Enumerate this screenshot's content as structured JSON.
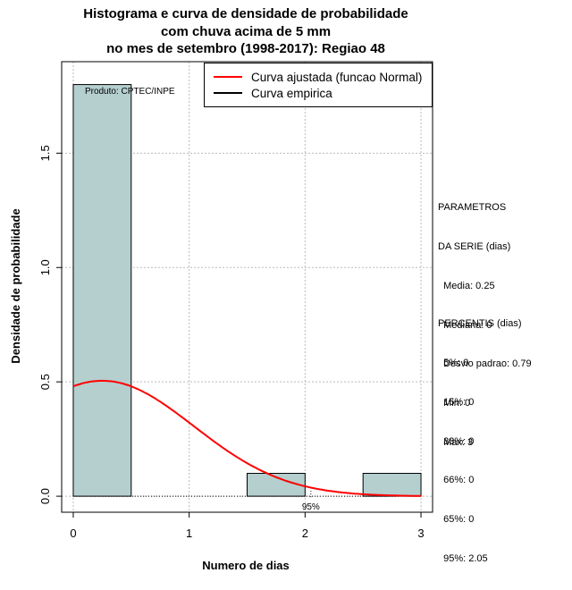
{
  "title_lines": [
    "Histograma e curva de densidade de probabilidade",
    "com chuva acima de 5 mm",
    "no mes de setembro (1998-2017): Regiao 48"
  ],
  "producer": "Produto: CPTEC/INPE",
  "legend": [
    {
      "label": "Curva ajustada (funcao Normal)",
      "color": "#ff0000"
    },
    {
      "label": "Curva empirica",
      "color": "#000000"
    }
  ],
  "params_block": [
    "PARAMETROS",
    "DA SERIE (dias)",
    "  Media: 0.25",
    "  Mediana: 0",
    "  Desvio padrao: 0.79",
    "  Min: 0",
    "  Max: 3"
  ],
  "percentis_block": [
    "PERCENTIS (dias)",
    "  5%: 0",
    "  15%: 0",
    "  33%: 0",
    "  66%: 0",
    "  65%: 0",
    "  95%: 2.05"
  ],
  "chart_data": {
    "type": "bar",
    "xlabel": "Numero de dias",
    "ylabel": "Densidade de probabilidade",
    "xlim": [
      -0.1,
      3.1
    ],
    "ylim": [
      -0.07,
      1.9
    ],
    "xticks": [
      0,
      1,
      2,
      3
    ],
    "yticks": [
      0.0,
      0.5,
      1.0,
      1.5
    ],
    "grid": true,
    "bar_color": "#b5cfcf",
    "bins": [
      {
        "x0": 0.0,
        "x1": 0.5,
        "density": 1.8
      },
      {
        "x0": 0.5,
        "x1": 1.0,
        "density": 0.0
      },
      {
        "x0": 1.0,
        "x1": 1.5,
        "density": 0.0
      },
      {
        "x0": 1.5,
        "x1": 2.0,
        "density": 0.1
      },
      {
        "x0": 2.0,
        "x1": 2.5,
        "density": 0.0
      },
      {
        "x0": 2.5,
        "x1": 3.0,
        "density": 0.1
      }
    ],
    "normal_fit": {
      "mean": 0.25,
      "sd": 0.79,
      "color": "#ff0000",
      "x_range": [
        0,
        3
      ]
    },
    "p95_marker": {
      "x": 2.05,
      "label": "95%"
    }
  }
}
